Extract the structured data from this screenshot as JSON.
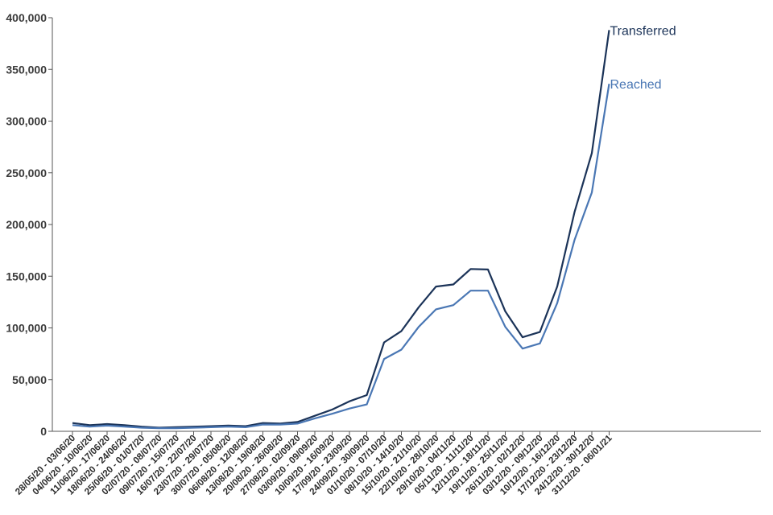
{
  "chart_data": {
    "type": "line",
    "categories": [
      "28/05/20 - 03/06/20",
      "04/06/20 - 10/06/20",
      "11/06/20 - 17/06/20",
      "18/06/20 - 24/06/20",
      "25/06/20 - 01/07/20",
      "02/07/20 - 08/07/20",
      "09/07/20 - 15/07/20",
      "16/07/20 - 22/07/20",
      "23/07/20 - 29/07/20",
      "30/07/20 - 05/08/20",
      "06/08/20 - 12/08/20",
      "13/08/20 - 19/08/20",
      "20/08/20 - 26/08/20",
      "27/08/20 - 02/09/20",
      "03/09/20 - 09/09/20",
      "10/09/20 - 16/09/20",
      "17/09/20 - 23/09/20",
      "24/09/20 - 30/09/20",
      "01/10/20 - 07/10/20",
      "08/10/20 - 14/10/20",
      "15/10/20 - 21/10/20",
      "22/10/20 - 28/10/20",
      "29/10/20 - 04/11/20",
      "05/11/20 - 11/11/20",
      "12/11/20 - 18/11/20",
      "19/11/20 - 25/11/20",
      "26/11/20 - 02/12/20",
      "03/12/20 - 09/12/20",
      "10/12/20 - 16/12/20",
      "17/12/20 - 23/12/20",
      "24/12/20 - 30/12/20",
      "31/12/20 - 06/01/21"
    ],
    "series": [
      {
        "name": "Transferred",
        "color": "#1b3358",
        "values": [
          8000,
          6000,
          7000,
          6000,
          4500,
          3500,
          4000,
          4500,
          5000,
          5500,
          5000,
          8000,
          7500,
          9000,
          15000,
          21000,
          29000,
          35000,
          86000,
          97000,
          120000,
          140000,
          142000,
          157000,
          156500,
          116000,
          91000,
          96000,
          140000,
          212000,
          269000,
          388000
        ]
      },
      {
        "name": "Reached",
        "color": "#4a77b4",
        "values": [
          6000,
          4500,
          5500,
          4500,
          3500,
          3000,
          3000,
          3500,
          4000,
          4500,
          4000,
          6500,
          6500,
          7500,
          12500,
          17000,
          22000,
          26000,
          70000,
          79000,
          101000,
          118000,
          122000,
          136000,
          136000,
          101000,
          80000,
          85000,
          124000,
          185000,
          231000,
          336000
        ]
      }
    ],
    "title": "",
    "xlabel": "",
    "ylabel": "",
    "ylim": [
      0,
      400000
    ],
    "yticks": [
      "0",
      "50,000",
      "100,000",
      "150,000",
      "200,000",
      "250,000",
      "300,000",
      "350,000",
      "400,000"
    ],
    "ytick_values": [
      0,
      50000,
      100000,
      150000,
      200000,
      250000,
      300000,
      350000,
      400000
    ],
    "grid": false,
    "legend": "end-of-line labels"
  }
}
